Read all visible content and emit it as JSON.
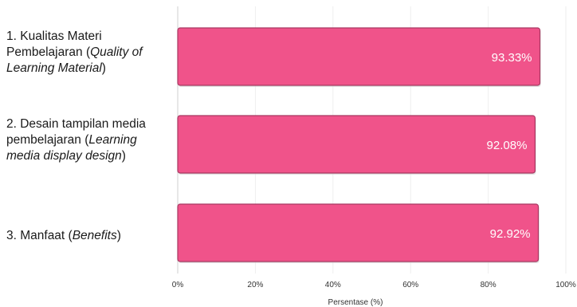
{
  "chart_data": {
    "type": "bar",
    "orientation": "horizontal",
    "categories": [
      {
        "prefix": "1. Kualitas Materi Pembelajaran (",
        "en": "Quality of Learning Material",
        "suffix": ")"
      },
      {
        "prefix": "2. Desain tampilan media pembelajaran (",
        "en": "Learning media display design",
        "suffix": ")"
      },
      {
        "prefix": "3. Manfaat (",
        "en": "Benefits",
        "suffix": ")"
      }
    ],
    "values": [
      93.33,
      92.08,
      92.92
    ],
    "data_labels": [
      "93.33%",
      "92.08%",
      "92.92%"
    ],
    "xlabel": "Persentase (%)",
    "xlim": [
      0,
      100
    ],
    "ticks": [
      0,
      20,
      40,
      60,
      80,
      100
    ],
    "tick_labels": [
      "0%",
      "20%",
      "40%",
      "60%",
      "80%",
      "100%"
    ],
    "grid": "vertical",
    "bar_color": "#f0538a",
    "bar_edge_color": "#a83862",
    "label_color": "#ffffff"
  }
}
